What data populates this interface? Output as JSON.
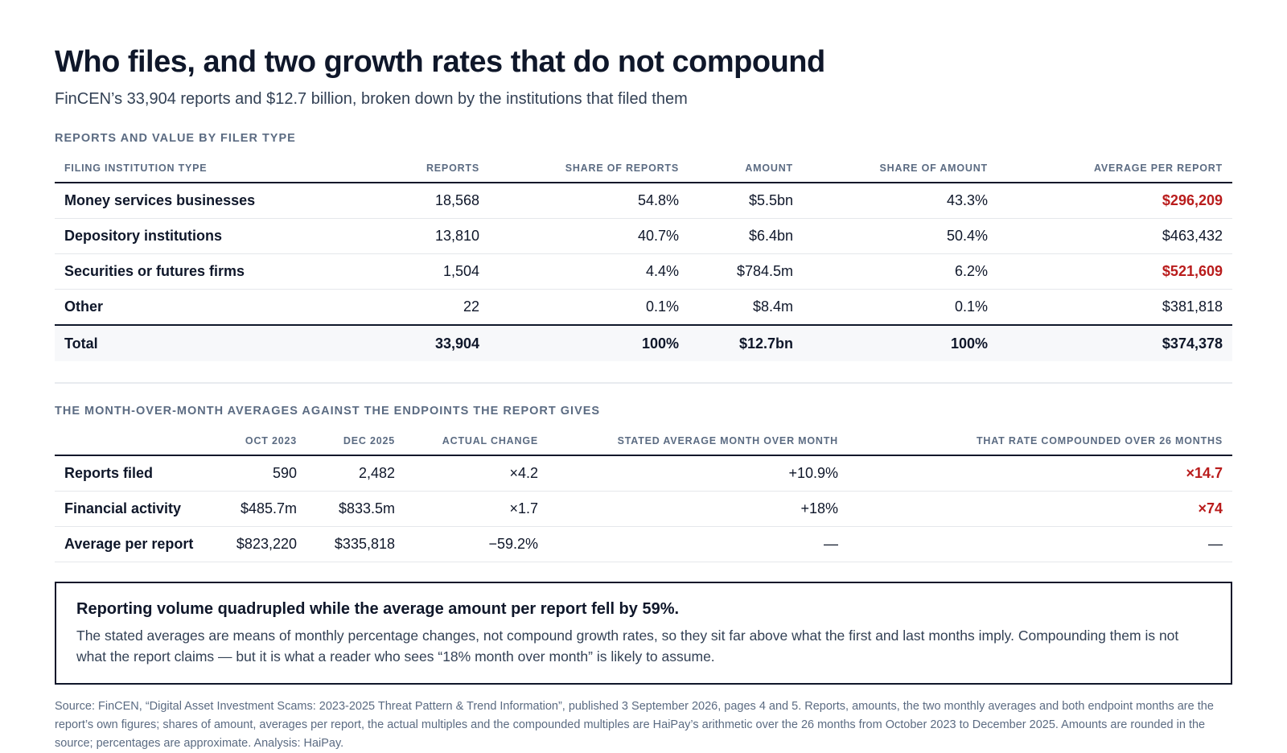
{
  "title": "Who files, and two growth rates that do not compound",
  "subtitle": "FinCEN’s 33,904 reports and $12.7 billion, broken down by the institutions that filed them",
  "section1": {
    "heading": "REPORTS AND VALUE BY FILER TYPE",
    "columns": [
      "FILING INSTITUTION TYPE",
      "REPORTS",
      "SHARE OF REPORTS",
      "AMOUNT",
      "SHARE OF AMOUNT",
      "AVERAGE PER REPORT"
    ],
    "rows": [
      {
        "type": "Money services businesses",
        "reports": "18,568",
        "share_reports": "54.8%",
        "amount": "$5.5bn",
        "share_amount": "43.3%",
        "avg": "$296,209",
        "highlight": true
      },
      {
        "type": "Depository institutions",
        "reports": "13,810",
        "share_reports": "40.7%",
        "amount": "$6.4bn",
        "share_amount": "50.4%",
        "avg": "$463,432",
        "highlight": false
      },
      {
        "type": "Securities or futures firms",
        "reports": "1,504",
        "share_reports": "4.4%",
        "amount": "$784.5m",
        "share_amount": "6.2%",
        "avg": "$521,609",
        "highlight": true
      },
      {
        "type": "Other",
        "reports": "22",
        "share_reports": "0.1%",
        "amount": "$8.4m",
        "share_amount": "0.1%",
        "avg": "$381,818",
        "highlight": false
      }
    ],
    "total": {
      "type": "Total",
      "reports": "33,904",
      "share_reports": "100%",
      "amount": "$12.7bn",
      "share_amount": "100%",
      "avg": "$374,378"
    }
  },
  "section2": {
    "heading": "THE MONTH-OVER-MONTH AVERAGES AGAINST THE ENDPOINTS THE REPORT GIVES",
    "columns": [
      "",
      "OCT 2023",
      "DEC 2025",
      "ACTUAL CHANGE",
      "STATED AVERAGE MONTH OVER MONTH",
      "THAT RATE COMPOUNDED OVER 26 MONTHS"
    ],
    "rows": [
      {
        "metric": "Reports filed",
        "oct": "590",
        "dec": "2,482",
        "change": "×4.2",
        "stated": "+10.9%",
        "compounded": "×14.7",
        "highlight": true
      },
      {
        "metric": "Financial activity",
        "oct": "$485.7m",
        "dec": "$833.5m",
        "change": "×1.7",
        "stated": "+18%",
        "compounded": "×74",
        "highlight": true
      },
      {
        "metric": "Average per report",
        "oct": "$823,220",
        "dec": "$335,818",
        "change": "−59.2%",
        "stated": "—",
        "compounded": "—",
        "highlight": false
      }
    ]
  },
  "callout": {
    "title": "Reporting volume quadrupled while the average amount per report fell by 59%.",
    "body": "The stated averages are means of monthly percentage changes, not compound growth rates, so they sit far above what the first and last months imply. Compounding them is not what the report claims — but it is what a reader who sees “18% month over month” is likely to assume."
  },
  "source": "Source: FinCEN, “Digital Asset Investment Scams: 2023-2025 Threat Pattern & Trend Information”, published 3 September 2026, pages 4 and 5. Reports, amounts, the two monthly averages and both endpoint months are the report’s own figures; shares of amount, averages per report, the actual multiples and the compounded multiples are HaiPay’s arithmetic over the 26 months from October 2023 to December 2025. Amounts are rounded in the source; percentages are approximate. Analysis: HaiPay.",
  "colors": {
    "highlight": "#b91c1c",
    "text": "#0f172a",
    "muted": "#5b6b82"
  }
}
